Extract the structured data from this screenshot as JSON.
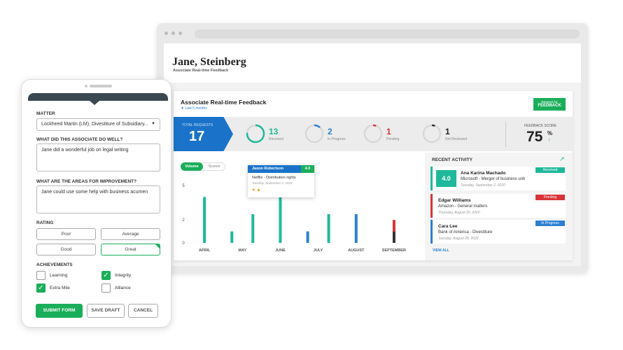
{
  "form": {
    "matter_label": "MATTER",
    "matter_value": "Lockheed Martin (LM), Divestiture of Subsidiary...",
    "well_label": "WHAT DID THIS ASSOCIATE DO WELL?",
    "well_text": "Jane did a wonderful job on legal writing",
    "improve_label": "WHAT ARE THE AREAS FOR IMPROVEMENT?",
    "improve_text": "Jane could use some help with business acumen",
    "rating_label": "RATING",
    "ratings": [
      {
        "label": "Poor",
        "selected": false
      },
      {
        "label": "Average",
        "selected": false
      },
      {
        "label": "Good",
        "selected": false
      },
      {
        "label": "Great",
        "selected": true
      }
    ],
    "achievements_label": "ACHIEVEMENTS",
    "achievements": [
      {
        "label": "Learning",
        "checked": false
      },
      {
        "label": "Integrity",
        "checked": true
      },
      {
        "label": "Extra Mile",
        "checked": true
      },
      {
        "label": "Alliance",
        "checked": false
      }
    ],
    "buttons": [
      "SUBMIT FORM",
      "SAVE DRAFT",
      "CANCEL"
    ]
  },
  "header": {
    "name": "Jane, Steinberg",
    "subtitle": "Associate Real-time Feedback"
  },
  "card": {
    "title": "Associate Real-time Feedback",
    "period": "Last 6 months",
    "request_button": [
      "Request for",
      "FEEDBACK"
    ]
  },
  "stats": {
    "total_label": "TOTAL REQUESTS",
    "total": 17,
    "items": [
      {
        "value": 13,
        "label": "Received",
        "color": "#1fb89b"
      },
      {
        "value": 2,
        "label": "In Progress",
        "color": "#2d7fd3"
      },
      {
        "value": 1,
        "label": "Pending",
        "color": "#d9343a"
      },
      {
        "value": 1,
        "label": "Not Reviewed",
        "color": "#333333"
      }
    ],
    "score_label": "FEEDBACK SCORE",
    "score": 75,
    "score_unit": "%"
  },
  "tabs": [
    "Volume",
    "Scores"
  ],
  "tooltip": {
    "name": "Jason Robertson",
    "score": "4.0",
    "matter": "Netflix - Distribution rights",
    "date": "Tuesday, September 2, 2020"
  },
  "chart_data": {
    "type": "bar",
    "categories": [
      "APRIL",
      "MAY",
      "JUNE",
      "JULY",
      "AUGUST",
      "SEPTEMBER"
    ],
    "series": [
      {
        "color": "#1fb89b",
        "values": [
          4,
          1,
          4,
          null,
          null,
          null
        ]
      },
      {
        "color": "#2d7fd3",
        "values": [
          null,
          null,
          null,
          1,
          2.5,
          null
        ]
      },
      {
        "color": "#1fb89b",
        "values": [
          null,
          2.5,
          null,
          2.5,
          null,
          null
        ]
      },
      {
        "color": "#333333",
        "values": [
          null,
          null,
          null,
          null,
          null,
          1
        ]
      },
      {
        "color": "#d9343a",
        "values": [
          null,
          null,
          null,
          null,
          null,
          1
        ],
        "stacked": true
      }
    ],
    "ylim": [
      0,
      5
    ],
    "yticks": [
      0,
      2,
      5
    ]
  },
  "activity": {
    "title": "RECENT ACTIVITY",
    "items": [
      {
        "name": "Ana Karina Machado",
        "matter": "Microsoft - Merger of business unit",
        "date": "Tuesday, September 2, 2020",
        "status": "Received",
        "color": "#1fb89b",
        "score": "4.0"
      },
      {
        "name": "Edgar Williams",
        "matter": "Amazon - General matters",
        "date": "Thursday, August 20, 2020",
        "status": "Pending",
        "color": "#d9343a"
      },
      {
        "name": "Cara Lee",
        "matter": "Bank of America - Divestiture",
        "date": "Tuesday, August 28, 2020",
        "status": "In Progress",
        "color": "#2d7fd3"
      }
    ],
    "view_all": "VIEW ALL"
  }
}
